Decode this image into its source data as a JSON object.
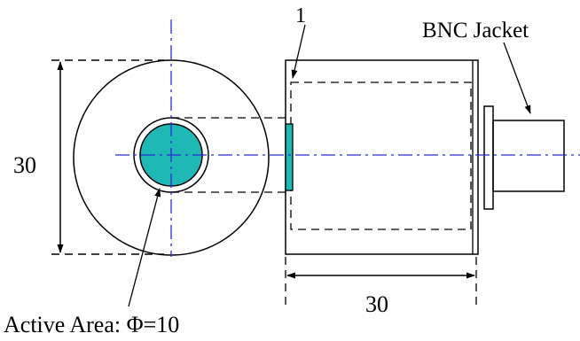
{
  "labels": {
    "part_number": "1",
    "connector": "BNC Jacket",
    "dim_vertical": "30",
    "dim_horizontal": "30",
    "active_area": "Active Area: Φ=10"
  },
  "colors": {
    "line": "#000000",
    "center_line": "#2a2ad8",
    "active_fill": "#1fb8b4",
    "background": "#ffffff"
  }
}
